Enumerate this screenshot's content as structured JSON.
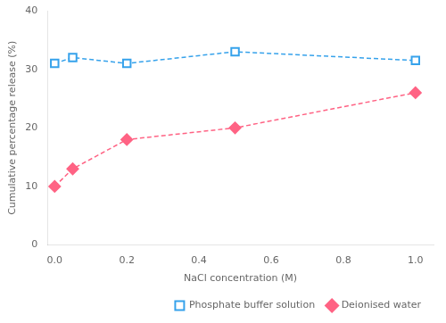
{
  "chart_data": {
    "type": "line",
    "x": [
      0.0,
      0.05,
      0.2,
      0.5,
      1.0
    ],
    "series": [
      {
        "name": "Phosphate buffer solution",
        "values": [
          31.0,
          32.0,
          31.0,
          33.0,
          31.5
        ],
        "marker": "open_square",
        "line_style": "dashed"
      },
      {
        "name": "Deionised water",
        "values": [
          10.0,
          13.0,
          18.0,
          20.0,
          26.0
        ],
        "marker": "diamond",
        "line_style": "dashed"
      }
    ],
    "xlabel": "NaCl concentration (M)",
    "ylabel": "Cumulative percentage release (%)",
    "xlim": [
      -0.02,
      1.05
    ],
    "ylim": [
      0,
      40
    ],
    "xticks": [
      {
        "value": 0,
        "label": "0.0"
      },
      0.2,
      0.4,
      0.6,
      0.8,
      {
        "value": 1,
        "label": "1.0"
      }
    ],
    "yticks": [
      0,
      10,
      20,
      30,
      40
    ],
    "grid": false,
    "legend": "lower right"
  }
}
